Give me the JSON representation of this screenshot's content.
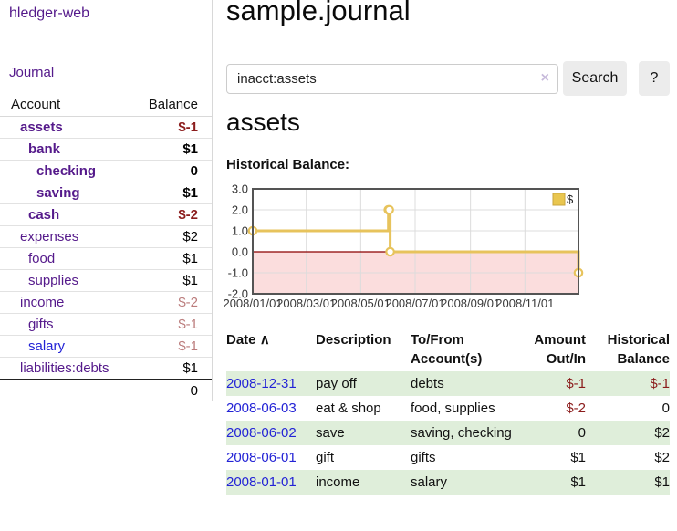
{
  "app_title": "hledger-web",
  "colors": {
    "link_purple": "#551a8b",
    "link_blue": "#2424d6",
    "negative_strong": "#8b1c1c",
    "negative_muted": "#bb7c7c",
    "row_green": "#dfeeda",
    "button_bg": "#ececec"
  },
  "sidebar": {
    "journal_link": "Journal",
    "accounts_table": {
      "headers": {
        "account": "Account",
        "balance": "Balance"
      },
      "rows": [
        {
          "account": "assets",
          "balance": "$-1",
          "depth": 1,
          "in_acct": true
        },
        {
          "account": "bank",
          "balance": "$1",
          "depth": 2,
          "in_acct": true
        },
        {
          "account": "checking",
          "balance": "0",
          "depth": 3,
          "in_acct": true
        },
        {
          "account": "saving",
          "balance": "$1",
          "depth": 3,
          "in_acct": true
        },
        {
          "account": "cash",
          "balance": "$-2",
          "depth": 2,
          "in_acct": true
        },
        {
          "account": "expenses",
          "balance": "$2",
          "depth": 1,
          "in_acct": false
        },
        {
          "account": "food",
          "balance": "$1",
          "depth": 2,
          "in_acct": false
        },
        {
          "account": "supplies",
          "balance": "$1",
          "depth": 2,
          "in_acct": false
        },
        {
          "account": "income",
          "balance": "$-2",
          "depth": 1,
          "in_acct": false
        },
        {
          "account": "gifts",
          "balance": "$-1",
          "depth": 2,
          "in_acct": false
        },
        {
          "account": "salary",
          "balance": "$-1",
          "depth": 2,
          "in_acct": false,
          "unvisited": true
        },
        {
          "account": "liabilities:debts",
          "balance": "$1",
          "depth": 1,
          "in_acct": false
        }
      ],
      "total": "0"
    }
  },
  "main": {
    "title": "sample.journal",
    "search": {
      "value": "inacct:assets",
      "clear_icon": "×",
      "search_button": "Search",
      "help_button": "?"
    },
    "account_heading": "assets",
    "section_label": "Historical Balance:"
  },
  "chart_data": {
    "type": "line",
    "title": "Historical Balance",
    "step": true,
    "series": [
      {
        "name": "$",
        "points": [
          [
            "2008-01-01",
            1
          ],
          [
            "2008-06-01",
            2
          ],
          [
            "2008-06-02",
            2
          ],
          [
            "2008-06-03",
            0
          ],
          [
            "2008-12-31",
            -1
          ]
        ]
      }
    ],
    "xlim": [
      "2008-01-01",
      "2008-12-31"
    ],
    "ylim": [
      -2,
      3
    ],
    "x_ticks": [
      {
        "label": "2008/01/01",
        "date": "2008-01-01"
      },
      {
        "label": "2008/03/01",
        "date": "2008-03-01"
      },
      {
        "label": "2008/05/01",
        "date": "2008-05-01"
      },
      {
        "label": "2008/07/01",
        "date": "2008-07-01"
      },
      {
        "label": "2008/09/01",
        "date": "2008-09-01"
      },
      {
        "label": "2008/11/01",
        "date": "2008-11-01"
      }
    ],
    "y_ticks": [
      {
        "label": "3.0",
        "value": 3
      },
      {
        "label": "2.0",
        "value": 2
      },
      {
        "label": "1.0",
        "value": 1
      },
      {
        "label": "0.0",
        "value": 0
      },
      {
        "label": "-1.0",
        "value": -1
      },
      {
        "label": "-2.0",
        "value": -2
      }
    ],
    "legend": {
      "label": "$",
      "position": "top-right"
    },
    "grid": true,
    "colors": {
      "line": "#e7c35c",
      "marker_fill": "#ffffff",
      "negative_region": "#fbdddd",
      "zero_line": "#8b0000",
      "border": "#545454",
      "grid": "#dcdcdc",
      "legend_swatch": "#e9c64f",
      "legend_swatch_border": "#c9a53d"
    }
  },
  "register": {
    "headers": [
      "Date",
      "Description",
      "To/From Account(s)",
      "Amount Out/In",
      "Historical Balance"
    ],
    "sort_icon": "∧",
    "rows": [
      {
        "date": "2008-12-31",
        "description": "pay off",
        "accounts": "debts",
        "amount": "$-1",
        "balance": "$-1"
      },
      {
        "date": "2008-06-03",
        "description": "eat & shop",
        "accounts": "food, supplies",
        "amount": "$-2",
        "balance": "0"
      },
      {
        "date": "2008-06-02",
        "description": "save",
        "accounts": "saving, checking",
        "amount": "0",
        "balance": "$2"
      },
      {
        "date": "2008-06-01",
        "description": "gift",
        "accounts": "gifts",
        "amount": "$1",
        "balance": "$2"
      },
      {
        "date": "2008-01-01",
        "description": "income",
        "accounts": "salary",
        "amount": "$1",
        "balance": "$1"
      }
    ]
  }
}
